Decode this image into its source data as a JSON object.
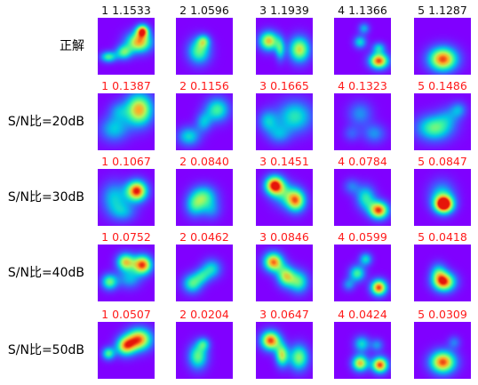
{
  "colors": {
    "title_truth": "#111111",
    "title_noisy": "#ff1a1a",
    "heat_background": "#8000ff"
  },
  "rows": [
    {
      "label": "正解",
      "kind": "truth",
      "cells": [
        {
          "title": "1 1.1533",
          "blobs": [
            [
              0.18,
              0.68,
              0.1,
              0.07,
              0.55
            ],
            [
              0.45,
              0.6,
              0.1,
              0.09,
              0.55
            ],
            [
              0.72,
              0.42,
              0.16,
              0.13,
              0.85
            ],
            [
              0.78,
              0.22,
              0.08,
              0.08,
              0.8
            ]
          ]
        },
        {
          "title": "2 1.0596",
          "blobs": [
            [
              0.4,
              0.58,
              0.14,
              0.16,
              0.6
            ],
            [
              0.48,
              0.4,
              0.08,
              0.08,
              0.45
            ]
          ]
        },
        {
          "title": "3 1.1939",
          "blobs": [
            [
              0.22,
              0.4,
              0.12,
              0.12,
              0.8
            ],
            [
              0.42,
              0.55,
              0.06,
              0.14,
              0.45
            ],
            [
              0.76,
              0.55,
              0.13,
              0.16,
              0.75
            ]
          ]
        },
        {
          "title": "4 1.1366",
          "blobs": [
            [
              0.45,
              0.42,
              0.08,
              0.08,
              0.45
            ],
            [
              0.52,
              0.18,
              0.07,
              0.07,
              0.35
            ],
            [
              0.78,
              0.75,
              0.12,
              0.1,
              0.95
            ],
            [
              0.78,
              0.52,
              0.08,
              0.07,
              0.4
            ]
          ]
        },
        {
          "title": "5 1.1287",
          "blobs": [
            [
              0.5,
              0.72,
              0.18,
              0.15,
              0.95
            ]
          ]
        }
      ]
    },
    {
      "label": "S/N比=20dB",
      "kind": "noisy",
      "cells": [
        {
          "title": "1 0.1387",
          "blobs": [
            [
              0.72,
              0.28,
              0.17,
              0.2,
              0.85
            ],
            [
              0.28,
              0.62,
              0.18,
              0.16,
              0.4
            ],
            [
              0.35,
              0.3,
              0.12,
              0.12,
              0.25
            ]
          ]
        },
        {
          "title": "2 0.1156",
          "blobs": [
            [
              0.72,
              0.28,
              0.15,
              0.15,
              0.55
            ],
            [
              0.22,
              0.75,
              0.14,
              0.12,
              0.45
            ],
            [
              0.48,
              0.5,
              0.1,
              0.12,
              0.35
            ]
          ]
        },
        {
          "title": "3 0.1665",
          "blobs": [
            [
              0.68,
              0.4,
              0.22,
              0.2,
              0.5
            ],
            [
              0.2,
              0.48,
              0.12,
              0.14,
              0.38
            ],
            [
              0.4,
              0.72,
              0.14,
              0.12,
              0.3
            ]
          ]
        },
        {
          "title": "4 0.1323",
          "blobs": [
            [
              0.45,
              0.35,
              0.15,
              0.15,
              0.3
            ],
            [
              0.7,
              0.7,
              0.14,
              0.12,
              0.3
            ],
            [
              0.3,
              0.7,
              0.1,
              0.1,
              0.2
            ]
          ]
        },
        {
          "title": "5 0.1486",
          "blobs": [
            [
              0.35,
              0.6,
              0.22,
              0.16,
              0.6
            ],
            [
              0.78,
              0.28,
              0.1,
              0.1,
              0.3
            ],
            [
              0.6,
              0.4,
              0.14,
              0.14,
              0.2
            ]
          ]
        }
      ]
    },
    {
      "label": "S/N比=30dB",
      "kind": "noisy",
      "cells": [
        {
          "title": "1 0.1067",
          "blobs": [
            [
              0.68,
              0.38,
              0.13,
              0.13,
              1.0
            ],
            [
              0.28,
              0.5,
              0.16,
              0.2,
              0.4
            ],
            [
              0.45,
              0.75,
              0.16,
              0.12,
              0.3
            ]
          ]
        },
        {
          "title": "2 0.0840",
          "blobs": [
            [
              0.48,
              0.48,
              0.16,
              0.14,
              0.55
            ],
            [
              0.32,
              0.65,
              0.12,
              0.14,
              0.4
            ],
            [
              0.62,
              0.72,
              0.12,
              0.12,
              0.25
            ]
          ]
        },
        {
          "title": "3 0.1451",
          "blobs": [
            [
              0.32,
              0.28,
              0.12,
              0.12,
              1.0
            ],
            [
              0.7,
              0.55,
              0.12,
              0.14,
              0.8
            ],
            [
              0.5,
              0.45,
              0.16,
              0.16,
              0.35
            ]
          ]
        },
        {
          "title": "4 0.0784",
          "blobs": [
            [
              0.78,
              0.72,
              0.12,
              0.11,
              0.95
            ],
            [
              0.55,
              0.5,
              0.12,
              0.15,
              0.5
            ],
            [
              0.3,
              0.3,
              0.1,
              0.1,
              0.25
            ]
          ]
        },
        {
          "title": "5 0.0847",
          "blobs": [
            [
              0.52,
              0.62,
              0.12,
              0.11,
              1.05
            ],
            [
              0.48,
              0.45,
              0.16,
              0.18,
              0.4
            ]
          ]
        }
      ]
    },
    {
      "label": "S/N比=40dB",
      "kind": "noisy",
      "cells": [
        {
          "title": "1 0.0752",
          "blobs": [
            [
              0.78,
              0.35,
              0.12,
              0.12,
              0.95
            ],
            [
              0.48,
              0.3,
              0.11,
              0.11,
              0.75
            ],
            [
              0.2,
              0.65,
              0.1,
              0.1,
              0.6
            ],
            [
              0.55,
              0.6,
              0.14,
              0.12,
              0.35
            ]
          ]
        },
        {
          "title": "2 0.0462",
          "blobs": [
            [
              0.28,
              0.68,
              0.12,
              0.12,
              0.55
            ],
            [
              0.62,
              0.42,
              0.12,
              0.12,
              0.45
            ],
            [
              0.45,
              0.55,
              0.1,
              0.1,
              0.35
            ]
          ]
        },
        {
          "title": "3 0.0846",
          "blobs": [
            [
              0.3,
              0.3,
              0.12,
              0.12,
              0.9
            ],
            [
              0.52,
              0.55,
              0.11,
              0.13,
              0.7
            ],
            [
              0.75,
              0.65,
              0.12,
              0.14,
              0.55
            ]
          ]
        },
        {
          "title": "4 0.0599",
          "blobs": [
            [
              0.78,
              0.75,
              0.1,
              0.1,
              0.95
            ],
            [
              0.4,
              0.5,
              0.1,
              0.1,
              0.55
            ],
            [
              0.55,
              0.25,
              0.08,
              0.08,
              0.45
            ],
            [
              0.25,
              0.7,
              0.08,
              0.08,
              0.3
            ]
          ]
        },
        {
          "title": "5 0.0418",
          "blobs": [
            [
              0.52,
              0.65,
              0.14,
              0.12,
              0.95
            ],
            [
              0.42,
              0.48,
              0.1,
              0.12,
              0.4
            ]
          ]
        }
      ]
    },
    {
      "label": "S/N比=50dB",
      "kind": "noisy",
      "cells": [
        {
          "title": "1 0.0507",
          "blobs": [
            [
              0.72,
              0.3,
              0.16,
              0.14,
              0.9
            ],
            [
              0.48,
              0.42,
              0.12,
              0.12,
              0.75
            ],
            [
              0.18,
              0.55,
              0.08,
              0.08,
              0.55
            ]
          ]
        },
        {
          "title": "2 0.0204",
          "blobs": [
            [
              0.38,
              0.6,
              0.12,
              0.16,
              0.6
            ],
            [
              0.48,
              0.38,
              0.08,
              0.08,
              0.4
            ]
          ]
        },
        {
          "title": "3 0.0647",
          "blobs": [
            [
              0.25,
              0.32,
              0.12,
              0.12,
              0.95
            ],
            [
              0.45,
              0.58,
              0.08,
              0.14,
              0.7
            ],
            [
              0.75,
              0.62,
              0.12,
              0.16,
              0.65
            ]
          ]
        },
        {
          "title": "4 0.0424",
          "blobs": [
            [
              0.8,
              0.75,
              0.1,
              0.1,
              0.95
            ],
            [
              0.45,
              0.72,
              0.1,
              0.1,
              0.8
            ],
            [
              0.48,
              0.38,
              0.1,
              0.1,
              0.45
            ],
            [
              0.75,
              0.4,
              0.08,
              0.08,
              0.3
            ]
          ]
        },
        {
          "title": "5 0.0309",
          "blobs": [
            [
              0.5,
              0.7,
              0.16,
              0.14,
              0.95
            ],
            [
              0.7,
              0.35,
              0.08,
              0.08,
              0.25
            ]
          ]
        }
      ]
    }
  ]
}
